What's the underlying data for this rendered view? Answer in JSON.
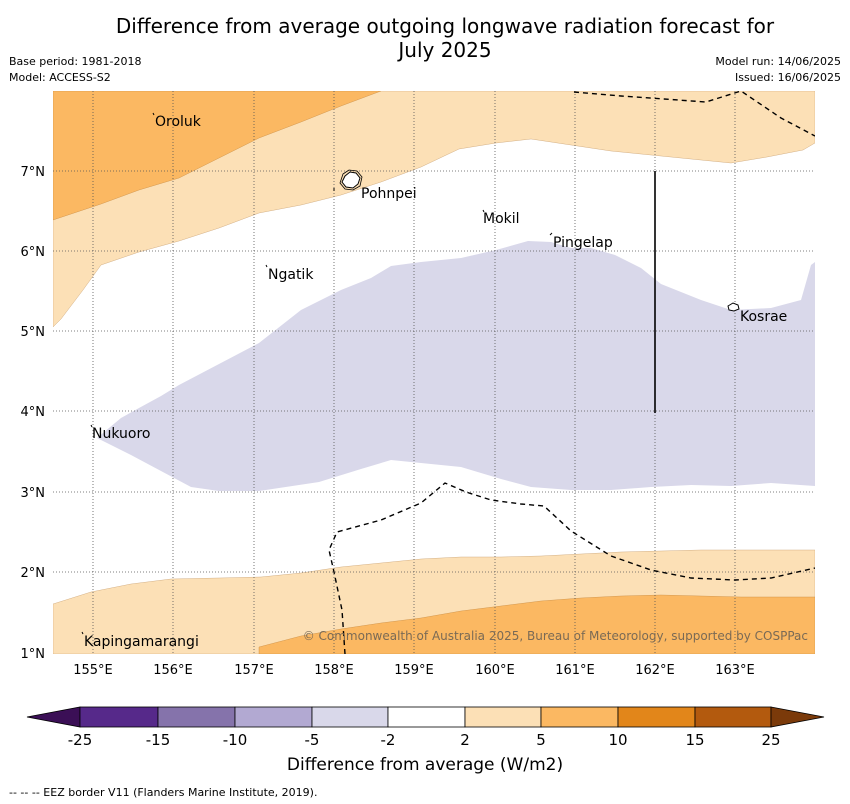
{
  "title": "Difference from average outgoing longwave radiation forecast for July 2025",
  "title_line1": "Difference from average outgoing longwave radiation forecast for",
  "title_line2": "July 2025",
  "base_period": "Base period: 1981-2018",
  "model": "Model: ACCESS-S2",
  "model_run": "Model run: 14/06/2025",
  "issued": "Issued: 16/06/2025",
  "lon_labels": [
    "155°E",
    "156°E",
    "157°E",
    "158°E",
    "159°E",
    "160°E",
    "161°E",
    "162°E",
    "163°E"
  ],
  "lat_labels": [
    "7°N",
    "6°N",
    "5°N",
    "4°N",
    "3°N",
    "2°N",
    "1°N"
  ],
  "places": [
    {
      "name": "Oroluk"
    },
    {
      "name": "Pohnpei"
    },
    {
      "name": "Mokil"
    },
    {
      "name": "Pingelap"
    },
    {
      "name": "Ngatik"
    },
    {
      "name": "Kosrae"
    },
    {
      "name": "Nukuoro"
    },
    {
      "name": "Kapingamarangi"
    }
  ],
  "copyright": "© Commonwealth of Australia 2025, Bureau of Meteorology, supported by COSPPac",
  "colorbar": {
    "ticks": [
      "-25",
      "-15",
      "-10",
      "-5",
      "-2",
      "2",
      "5",
      "10",
      "15",
      "25"
    ],
    "colors": [
      "#3b0f56",
      "#56298a",
      "#8573ab",
      "#b2a9d2",
      "#d9d8ea",
      "#ffffff",
      "#fce0b6",
      "#fbb862",
      "#e2861a",
      "#b35a0e",
      "#7b3a0a"
    ],
    "label": "Difference from average (W/m2)"
  },
  "legend_colors": {
    "band_2_5": "#fce0b6",
    "band_5_10": "#fbb862",
    "band_neg2_neg5": "#d9d8ea"
  },
  "footnote": "--  --  -- EEZ border V11 (Flanders Marine Institute, 2019)."
}
